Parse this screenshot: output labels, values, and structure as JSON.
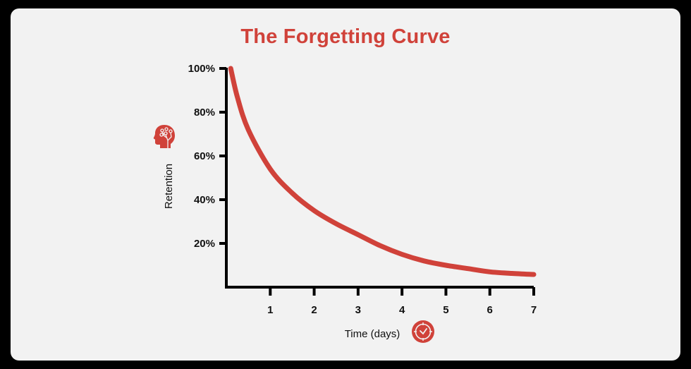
{
  "colors": {
    "background": "#f2f2f2",
    "accent": "#d0423a",
    "axis": "#000000",
    "frame": "#000000"
  },
  "chart_data": {
    "type": "line",
    "title": "The Forgetting Curve",
    "xlabel": "Time (days)",
    "ylabel": "Retention",
    "x_ticks": [
      "1",
      "2",
      "3",
      "4",
      "5",
      "6",
      "7"
    ],
    "y_ticks": [
      "20%",
      "40%",
      "60%",
      "80%",
      "100%"
    ],
    "xlim": [
      0,
      7
    ],
    "ylim": [
      0,
      100
    ],
    "grid": false,
    "legend": null,
    "series": [
      {
        "name": "Retention",
        "color": "#d0423a",
        "x": [
          0.1,
          0.25,
          0.5,
          1,
          1.5,
          2,
          2.5,
          3,
          3.5,
          4,
          4.5,
          5,
          5.5,
          6,
          6.5,
          7
        ],
        "y": [
          100,
          87,
          72,
          54,
          43,
          35,
          29,
          24,
          19,
          15,
          12,
          10,
          8.5,
          7,
          6.3,
          5.8
        ]
      }
    ],
    "annotations": [
      {
        "type": "icon",
        "name": "brain-head-icon",
        "near": "ylabel"
      },
      {
        "type": "icon",
        "name": "clock-icon",
        "near": "xlabel"
      }
    ]
  }
}
